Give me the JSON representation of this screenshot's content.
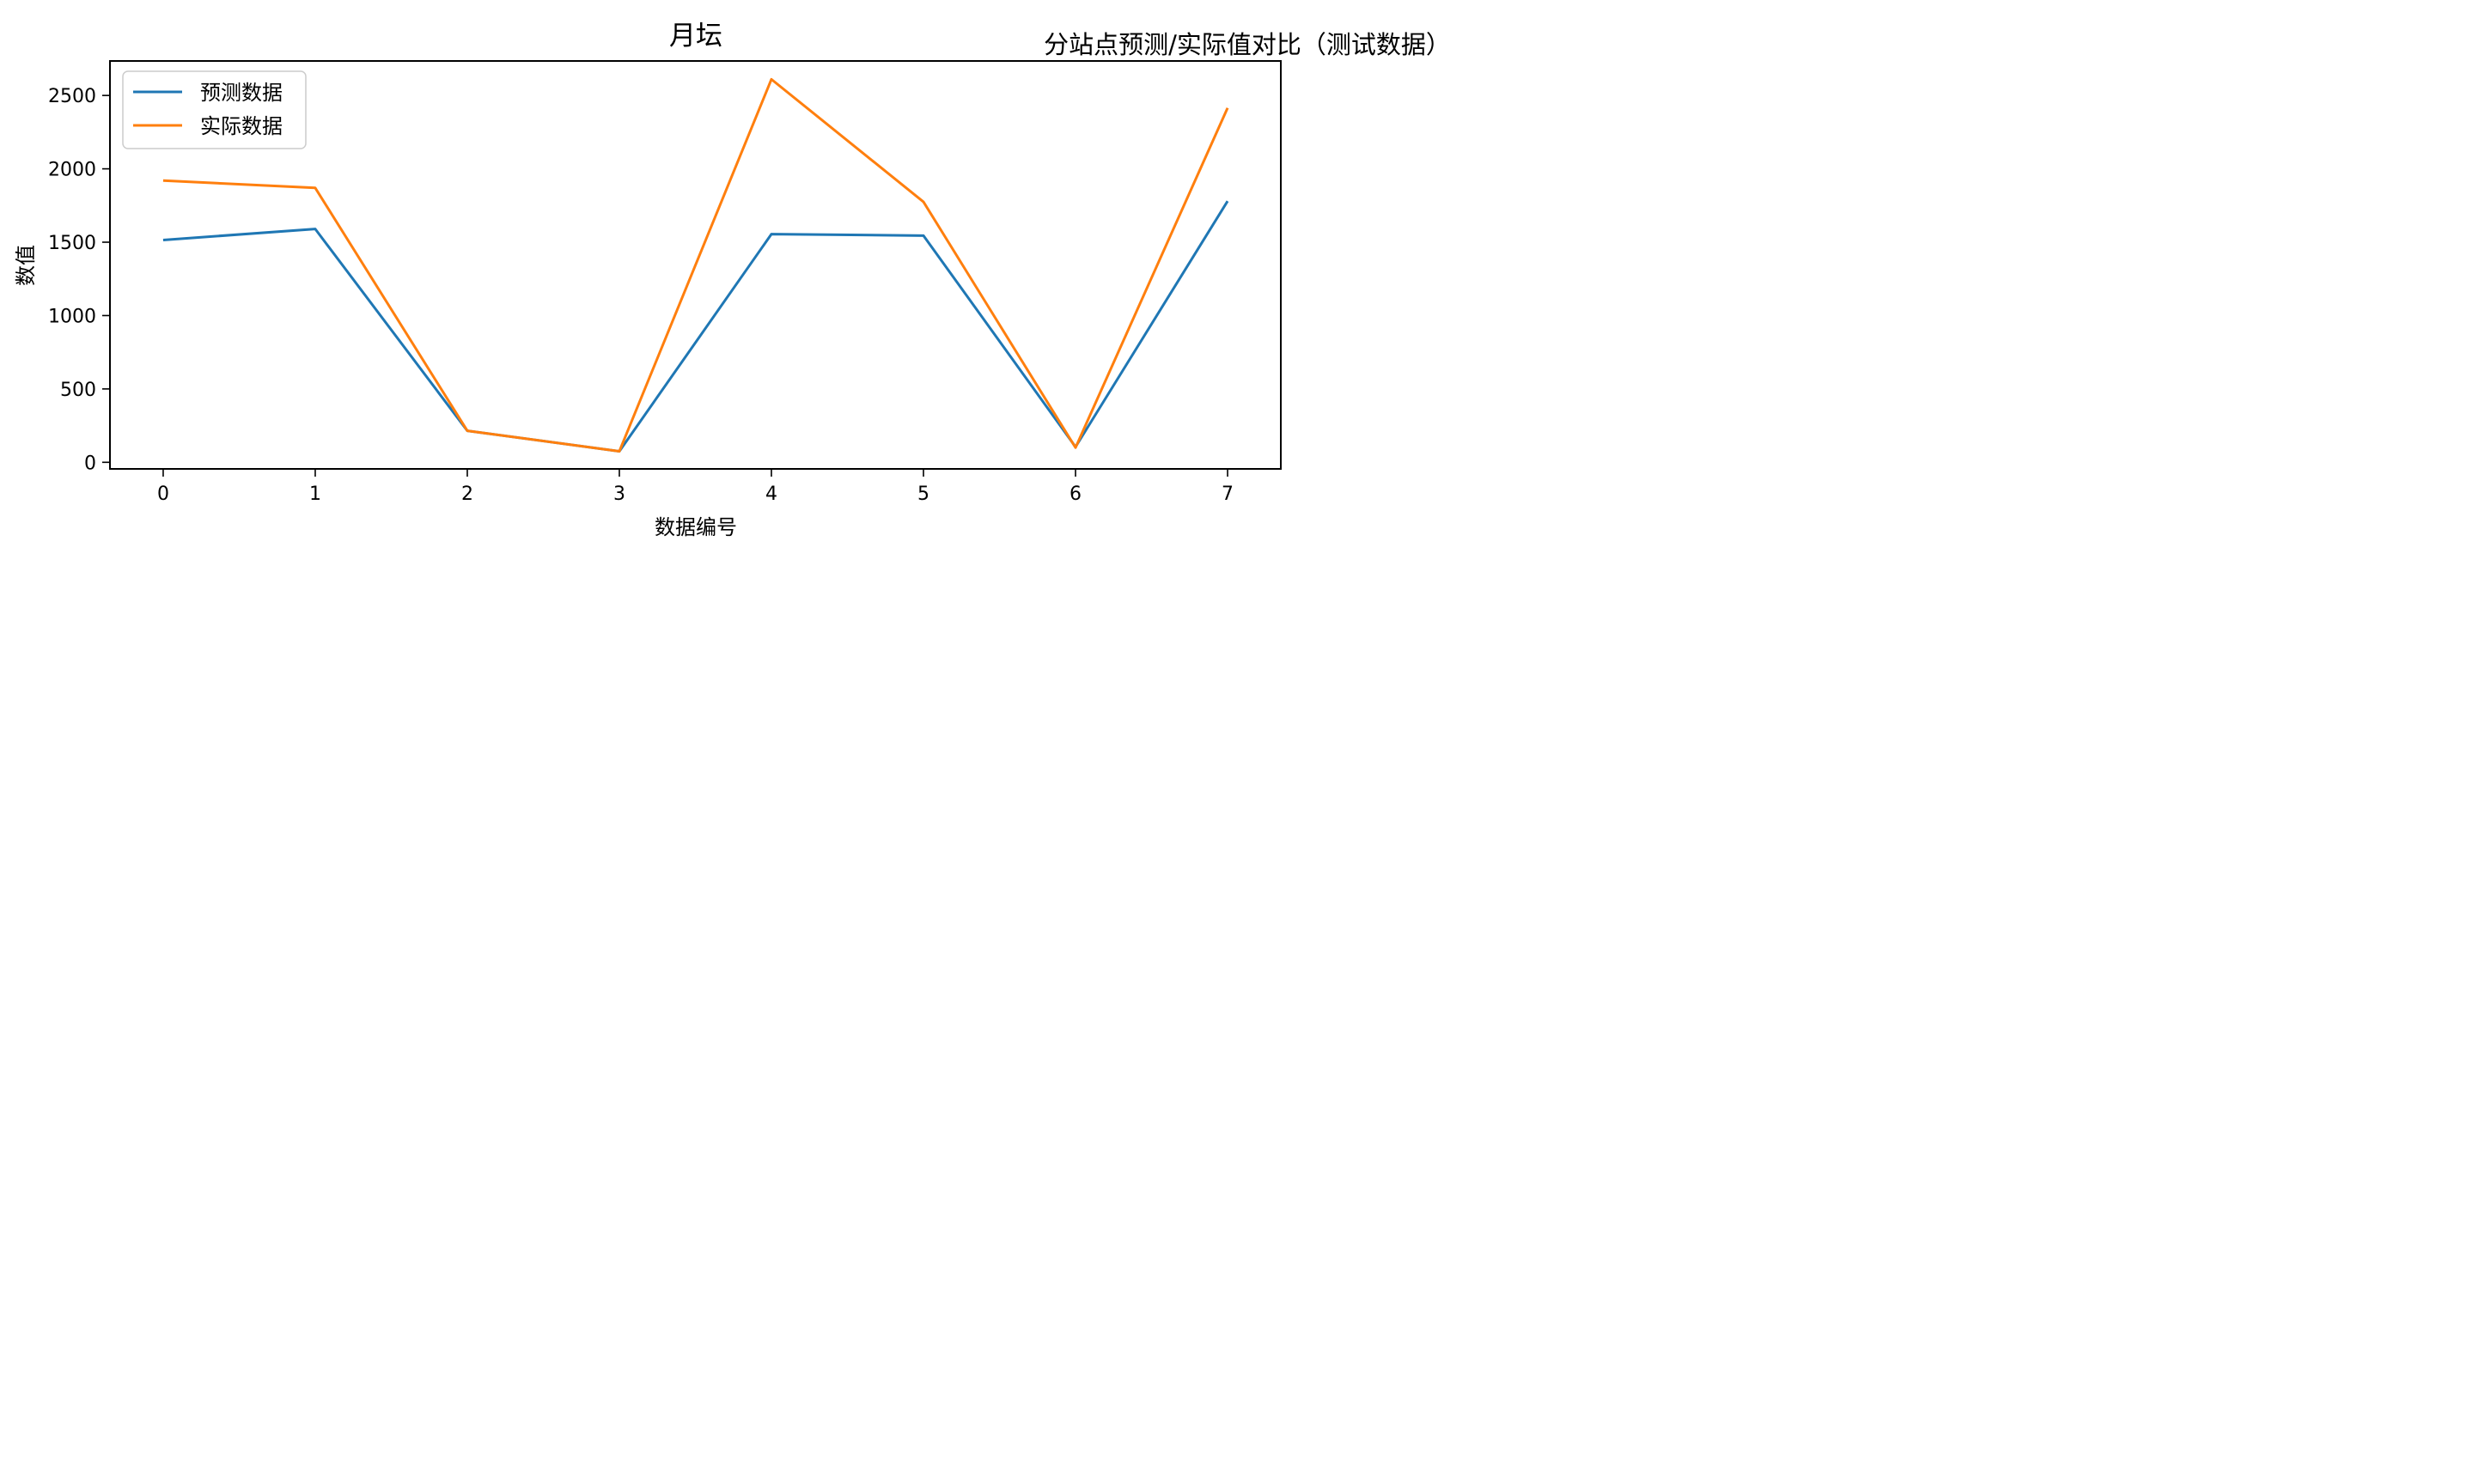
{
  "figure": {
    "suptitle": "分站点预测/实际值对比（测试数据）"
  },
  "chart_data": {
    "type": "line",
    "title": "月坛",
    "xlabel": "数据编号",
    "ylabel": "数值",
    "x": [
      0,
      1,
      2,
      3,
      4,
      5,
      6,
      7
    ],
    "xticks": [
      "0",
      "1",
      "2",
      "3",
      "4",
      "5",
      "6",
      "7"
    ],
    "yticks": [
      "0",
      "500",
      "1000",
      "1500",
      "2000",
      "2500"
    ],
    "ytick_values": [
      0,
      500,
      1000,
      1500,
      2000,
      2500
    ],
    "xlim": [
      -0.35,
      7.35
    ],
    "ylim": [
      -45,
      2735
    ],
    "grid": false,
    "legend_position": "upper-left",
    "series": [
      {
        "name": "预测数据",
        "color": "#1f77b4",
        "values": [
          1515,
          1590,
          215,
          75,
          1555,
          1545,
          105,
          1780
        ]
      },
      {
        "name": "实际数据",
        "color": "#ff7f0e",
        "values": [
          1920,
          1870,
          215,
          75,
          2610,
          1775,
          100,
          2415
        ]
      }
    ]
  }
}
